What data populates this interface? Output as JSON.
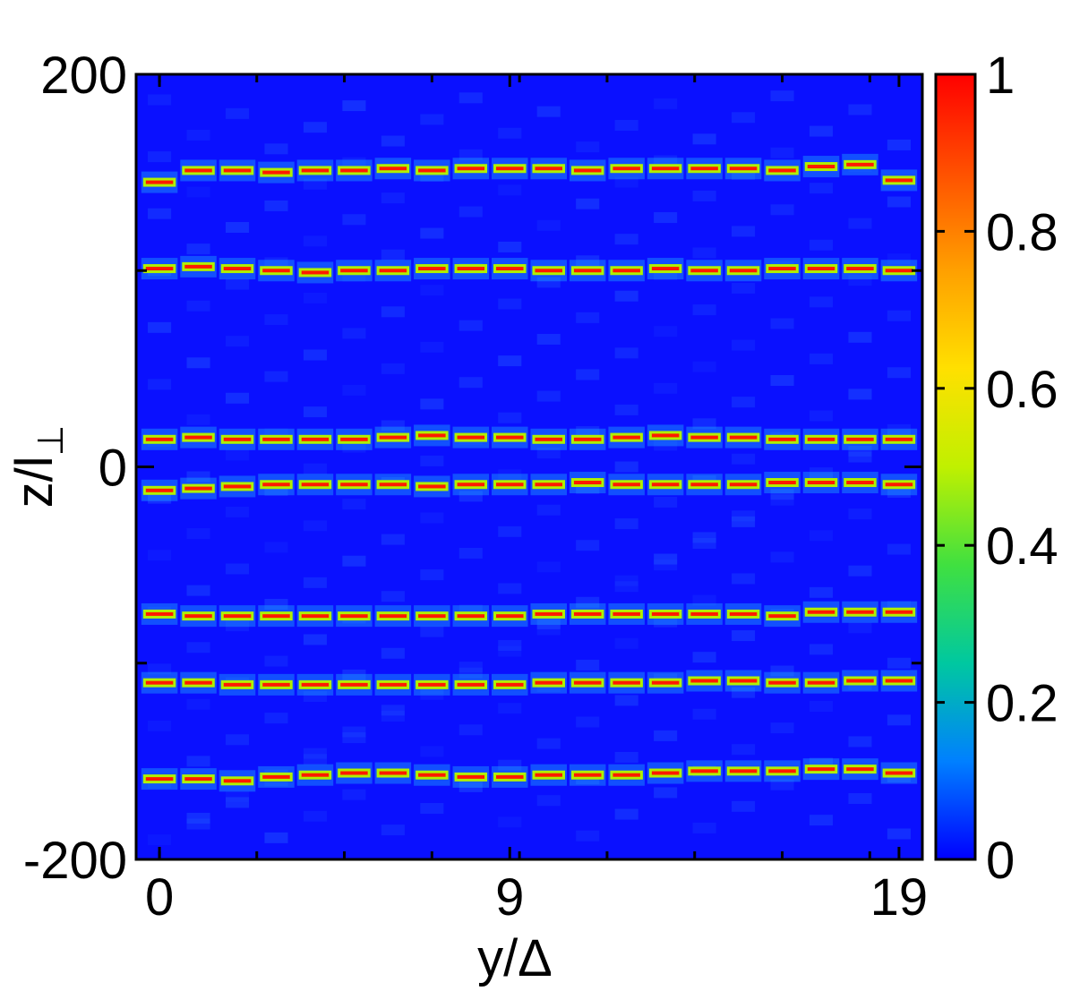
{
  "chart_data": {
    "type": "heatmap",
    "title": "",
    "xlabel": "y/Δ",
    "ylabel_main": "z/l",
    "ylabel_subscript": "⊥",
    "xlim": [
      -0.6,
      19.6
    ],
    "ylim": [
      -200,
      200
    ],
    "xticks": [
      {
        "value": 0,
        "label": "0"
      },
      {
        "value": 9,
        "label": "9"
      },
      {
        "value": 19,
        "label": "19"
      }
    ],
    "xminor_ticks": [
      0,
      2.5,
      4.75,
      7,
      9.25,
      11.5,
      13.75,
      16,
      18.25
    ],
    "yticks": [
      {
        "value": -200,
        "label": "-200"
      },
      {
        "value": 0,
        "label": "0"
      },
      {
        "value": 200,
        "label": "200"
      }
    ],
    "yminor_ticks": [
      -100,
      100
    ],
    "colorbar": {
      "range": [
        0,
        1
      ],
      "ticks": [
        {
          "value": 0,
          "label": "0"
        },
        {
          "value": 0.2,
          "label": "0.2"
        },
        {
          "value": 0.4,
          "label": "0.4"
        },
        {
          "value": 0.6,
          "label": "0.6"
        },
        {
          "value": 0.8,
          "label": "0.8"
        },
        {
          "value": 1,
          "label": "1"
        }
      ],
      "colormap": [
        "#0000ff",
        "#0080ff",
        "#00c8a0",
        "#40e040",
        "#c0f000",
        "#ffe000",
        "#ffa000",
        "#ff5000",
        "#ff0000"
      ]
    },
    "background_value": 0.03,
    "columns_y": [
      0,
      1,
      2,
      3,
      4,
      5,
      6,
      7,
      8,
      9,
      10,
      11,
      12,
      13,
      14,
      15,
      16,
      17,
      18,
      19
    ],
    "peak_rows": [
      {
        "z": [
          145,
          151,
          151,
          150,
          151,
          151,
          152,
          151,
          152,
          152,
          152,
          151,
          152,
          152,
          152,
          152,
          151,
          153,
          154,
          146
        ]
      },
      {
        "z": [
          101,
          102,
          101,
          100,
          99,
          100,
          100,
          101,
          101,
          101,
          100,
          100,
          100,
          101,
          100,
          100,
          101,
          101,
          101,
          100
        ]
      },
      {
        "z": [
          14,
          15,
          14,
          14,
          14,
          14,
          15,
          16,
          15,
          15,
          14,
          14,
          15,
          16,
          15,
          15,
          14,
          14,
          14,
          14
        ]
      },
      {
        "z": [
          -12,
          -11,
          -10,
          -9,
          -9,
          -9,
          -9,
          -10,
          -9,
          -9,
          -9,
          -8,
          -9,
          -9,
          -9,
          -9,
          -8,
          -8,
          -8,
          -9
        ]
      },
      {
        "z": [
          -75,
          -76,
          -76,
          -76,
          -76,
          -76,
          -76,
          -76,
          -76,
          -76,
          -75,
          -75,
          -75,
          -75,
          -75,
          -75,
          -76,
          -74,
          -74,
          -74
        ]
      },
      {
        "z": [
          -110,
          -110,
          -111,
          -111,
          -111,
          -111,
          -111,
          -111,
          -111,
          -111,
          -110,
          -110,
          -110,
          -110,
          -109,
          -109,
          -110,
          -110,
          -109,
          -109
        ]
      },
      {
        "z": [
          -159,
          -159,
          -160,
          -158,
          -157,
          -156,
          -156,
          -157,
          -158,
          -158,
          -157,
          -157,
          -157,
          -156,
          -155,
          -155,
          -155,
          -154,
          -154,
          -156
        ]
      }
    ]
  }
}
